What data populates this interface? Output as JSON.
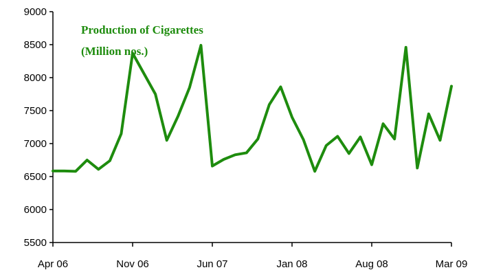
{
  "chart_data": {
    "type": "line",
    "title": [
      "Production of Cigarettes",
      "(Million nos.)"
    ],
    "xlabel": "",
    "ylabel": "",
    "ylim": [
      5500,
      9000
    ],
    "yticks": [
      "5500",
      "6000",
      "6500",
      "7000",
      "7500",
      "8000",
      "8500",
      "9000"
    ],
    "xticks": [
      "Apr 06",
      "Nov 06",
      "Jun 07",
      "Jan 08",
      "Aug 08",
      "Mar 09"
    ],
    "grid": false,
    "legend": "none",
    "colors": {
      "line": "#1e8c0e",
      "title": "#1e8c0e",
      "axis": "#000000"
    },
    "x": [
      "Apr 06",
      "May 06",
      "Jun 06",
      "Jul 06",
      "Aug 06",
      "Sep 06",
      "Oct 06",
      "Nov 06",
      "Dec 06",
      "Jan 07",
      "Feb 07",
      "Mar 07",
      "Apr 07",
      "May 07",
      "Jun 07",
      "Jul 07",
      "Aug 07",
      "Sep 07",
      "Oct 07",
      "Nov 07",
      "Dec 07",
      "Jan 08",
      "Feb 08",
      "Mar 08",
      "Apr 08",
      "May 08",
      "Jun 08",
      "Jul 08",
      "Aug 08",
      "Sep 08",
      "Oct 08",
      "Nov 08",
      "Dec 08",
      "Jan 09",
      "Feb 09",
      "Mar 09"
    ],
    "series": [
      {
        "values": [
          6585,
          6585,
          6580,
          6750,
          6610,
          6740,
          7150,
          8370,
          8060,
          7750,
          7050,
          7420,
          7850,
          8490,
          6660,
          6760,
          6830,
          6860,
          7070,
          7590,
          7860,
          7400,
          7060,
          6580,
          6970,
          7110,
          6850,
          7100,
          6680,
          7300,
          7070,
          8460,
          6630,
          7450,
          7050,
          7870
        ]
      }
    ]
  }
}
